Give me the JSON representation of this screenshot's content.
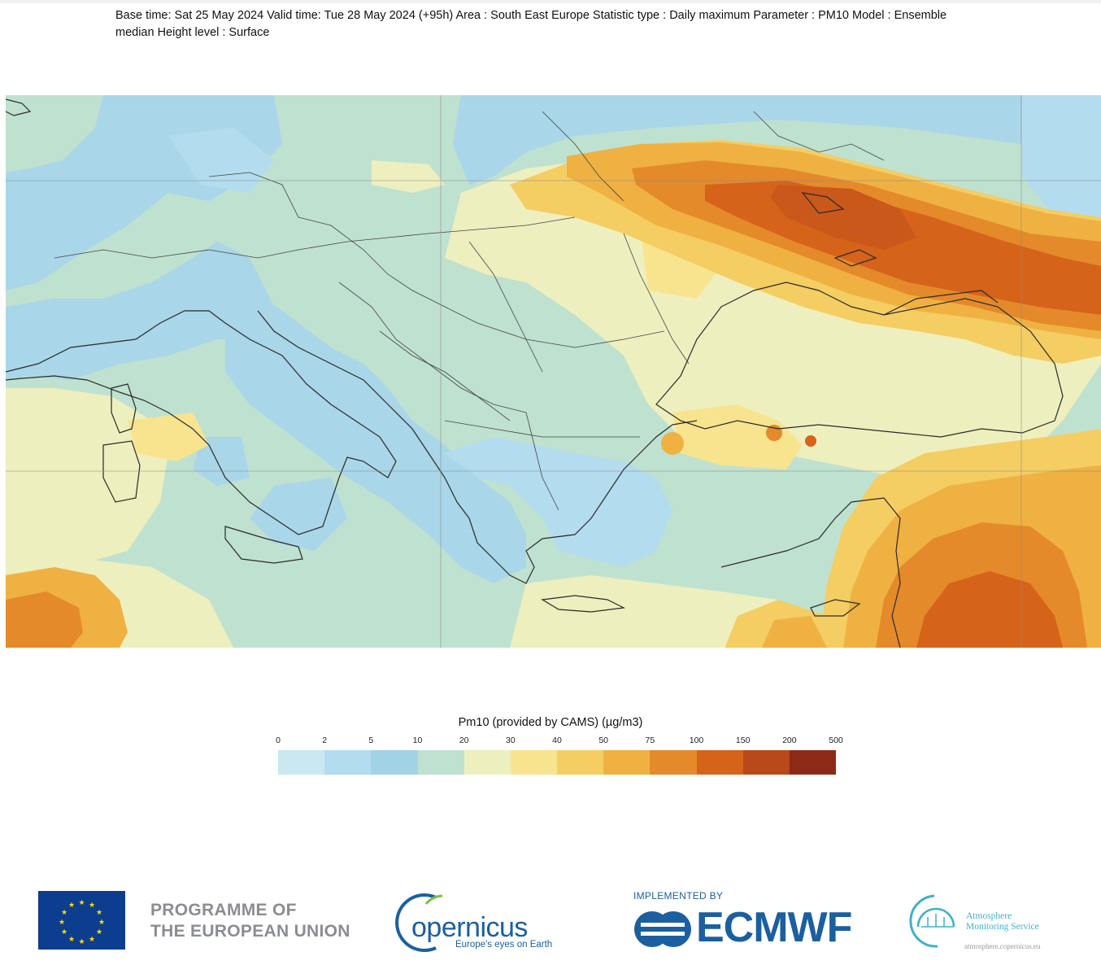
{
  "header": {
    "line1": "Base time: Sat 25 May 2024 Valid time: Tue 28 May 2024 (+95h) Area : South East Europe Statistic type : Daily maximum Parameter : PM10 Model : Ensemble",
    "line2": "median Height level : Surface"
  },
  "legend": {
    "title": "Pm10 (provided by CAMS) (µg/m3)",
    "ticks": [
      "0",
      "2",
      "5",
      "10",
      "20",
      "30",
      "40",
      "50",
      "75",
      "100",
      "150",
      "200",
      "500"
    ],
    "colors": [
      "#c9e8f2",
      "#b3dcef",
      "#a2d2e6",
      "#bfe1d0",
      "#eeefbe",
      "#f8e48f",
      "#f4cd63",
      "#efb142",
      "#e48a2a",
      "#d5631a",
      "#b9481a",
      "#8c2a17"
    ]
  },
  "map": {
    "background_color": "#bfe1d0"
  },
  "footer": {
    "eu_text": "PROGRAMME OF\nTHE EUROPEAN UNION",
    "copernicus_word": "opernicus",
    "copernicus_tagline": "Europe's eyes on Earth",
    "ecmwf_implemented": "IMPLEMENTED BY",
    "ecmwf_word": "ECMWF",
    "cams_line1": "Atmosphere",
    "cams_line2": "Monitoring Service",
    "cams_url": "atmosphere.copernicus.eu"
  }
}
